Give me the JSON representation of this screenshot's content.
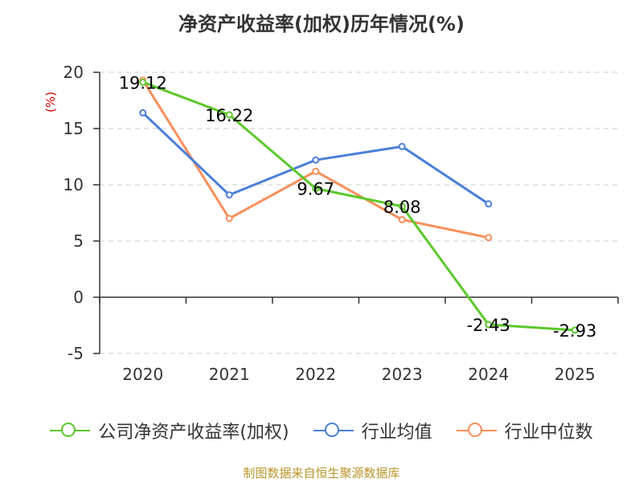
{
  "chart_data": {
    "type": "line",
    "title": "净资产收益率(加权)历年情况(%)",
    "ylabel": "(%)",
    "xlabel": "",
    "categories": [
      "2020",
      "2021",
      "2022",
      "2023",
      "2024",
      "2025"
    ],
    "ylim": [
      -5,
      20
    ],
    "yticks": [
      -5,
      0,
      5,
      10,
      15,
      20
    ],
    "grid": true,
    "legend_position": "bottom",
    "series": [
      {
        "name": "公司净资产收益率(加权)",
        "color": "#5bc82a",
        "values": [
          19.12,
          16.22,
          9.67,
          8.08,
          -2.43,
          -2.93
        ],
        "labels": [
          "19.12",
          "16.22",
          "9.67",
          "8.08",
          "-2.43",
          "-2.93"
        ]
      },
      {
        "name": "行业均值",
        "color": "#4a7fd8",
        "values": [
          16.4,
          9.1,
          12.2,
          13.4,
          8.3,
          null
        ]
      },
      {
        "name": "行业中位数",
        "color": "#f78f5a",
        "values": [
          19.3,
          7.0,
          11.2,
          6.9,
          5.3,
          null
        ]
      }
    ]
  },
  "legend": {
    "items": [
      "公司净资产收益率(加权)",
      "行业均值",
      "行业中位数"
    ]
  },
  "source": "制图数据来自恒生聚源数据库"
}
